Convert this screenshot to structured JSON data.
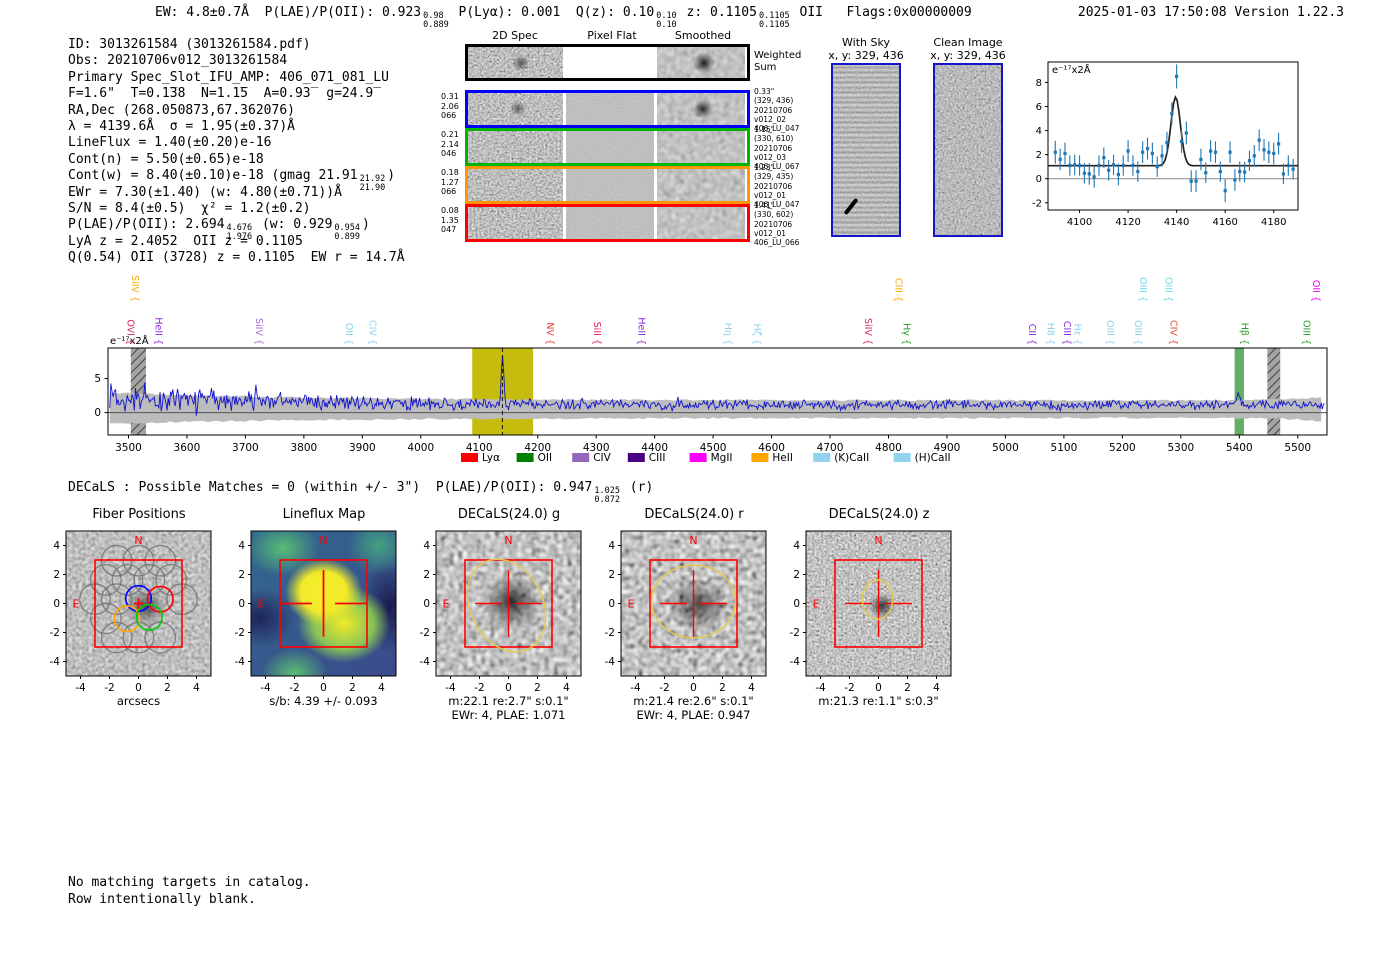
{
  "header": {
    "segments": [
      {
        "text": "EW: 4.8±0.7Å  P(LAE)/P(OII): 0.923"
      },
      {
        "sup": "0.98",
        "sub": "0.889"
      },
      {
        "text": " P(Lyα): 0.001  Q(z): 0.10"
      },
      {
        "sup": "0.10",
        "sub": "0.10"
      },
      {
        "text": " z: 0.1105"
      },
      {
        "sup": "0.1105",
        "sub": "0.1105"
      },
      {
        "text": " OII   Flags:0x00000009"
      }
    ],
    "timestamp": "2025-01-03 17:50:08  Version 1.22.3"
  },
  "info_block": {
    "lines": [
      [
        {
          "text": "ID: 3013261584 (3013261584.pdf)"
        }
      ],
      [
        {
          "text": "Obs: 20210706v012_3013261584"
        }
      ],
      [
        {
          "text": "Primary Spec_Slot_IFU_AMP: 406_071_081_LU"
        }
      ],
      [
        {
          "text": "F=1.6\"  T=0.1̅38  N=1.1̅5  A=0.93̅  g=24.9̅"
        }
      ],
      [
        {
          "text": "RA,Dec (268.050873,67.362076)"
        }
      ],
      [
        {
          "text": "λ = 4139.6Å  σ = 1.95(±0.37)Å"
        }
      ],
      [
        {
          "text": "LineFlux = 1.40(±0.20)e-16"
        }
      ],
      [
        {
          "text": "Cont(n) = 5.50(±0.65)e-18"
        }
      ],
      [
        {
          "text": "Cont(w) = 8.40(±0.10)e-18 (gmag 21.91"
        },
        {
          "sup": "21.92",
          "sub": "21.90"
        },
        {
          "text": ")"
        }
      ],
      [
        {
          "text": "EWr = 7.30(±1.40) (w: 4.80(±0.71))Å"
        }
      ],
      [
        {
          "text": "S/N = 8.4(±0.5)  χ² = 1.2(±0.2)"
        }
      ],
      [
        {
          "text": "P(LAE)/P(OII): 2.694"
        },
        {
          "sup": "4.676",
          "sub": "1.976"
        },
        {
          "text": " (w: 0.929"
        },
        {
          "sup": "0.954",
          "sub": "0.899"
        },
        {
          "text": ")"
        }
      ],
      [
        {
          "text": "LyA z = 2.4052  OII z = 0.1105"
        }
      ],
      [
        {
          "text": "Q(0.54) OII (3728) z = 0.1105  EW r = 14.7Å"
        }
      ]
    ]
  },
  "spec2d": {
    "col_titles": [
      "2D Spec",
      "Pixel Flat",
      "Smoothed"
    ],
    "weighted_label": [
      "Weighted",
      "Sum"
    ],
    "rows": [
      {
        "color": "#0000ff",
        "left": [
          "0.31",
          "2.06",
          "066"
        ],
        "right": [
          "0.33\"",
          "(329, 436)",
          "20210706",
          "v012_02",
          "406_LU_047"
        ]
      },
      {
        "color": "#00b400",
        "left": [
          "0.21",
          "2.14",
          "046"
        ],
        "right": [
          "1.15\"",
          "(330, 610)",
          "20210706",
          "v012_03",
          "406_LU_067"
        ]
      },
      {
        "color": "#ff9500",
        "left": [
          "0.18",
          "1.27",
          "066"
        ],
        "right": [
          "1.23\"",
          "(329, 435)",
          "20210706",
          "v012_01",
          "406_LU_047"
        ]
      },
      {
        "color": "#ff0000",
        "left": [
          "0.08",
          "1.35",
          "047"
        ],
        "right": [
          "1.41\"",
          "(330, 602)",
          "20210706",
          "v012_01",
          "406_LU_066"
        ]
      }
    ]
  },
  "sky_panels": {
    "with_sky": {
      "title": "With Sky",
      "subtitle": "x, y: 329, 436"
    },
    "clean": {
      "title": "Clean Image",
      "subtitle": "x, y: 329, 436"
    }
  },
  "decals_line": {
    "segments": [
      {
        "text": "DECaLS : Possible Matches = 0 (within +/- 3\")  P(LAE)/P(OII): 0.947"
      },
      {
        "sup": "1.025",
        "sub": "0.872"
      },
      {
        "text": " (r)"
      }
    ]
  },
  "cutouts": {
    "ticks": [
      -4,
      -2,
      0,
      2,
      4
    ],
    "compass": {
      "north": "N",
      "east": "E"
    },
    "panels": [
      {
        "title": "Fiber Positions",
        "xlabel": "arcsecs",
        "xlabel2": ""
      },
      {
        "title": "Lineflux Map",
        "xlabel": "s/b: 4.39 +/- 0.093",
        "xlabel2": ""
      },
      {
        "title": "DECaLS(24.0) g",
        "xlabel": "m:22.1  re:2.7\"  s:0.1\"",
        "xlabel2": "EWr: 4, PLAE: 1.071"
      },
      {
        "title": "DECaLS(24.0) r",
        "xlabel": "m:21.4  re:2.6\"  s:0.1\"",
        "xlabel2": "EWr: 4, PLAE: 0.947"
      },
      {
        "title": "DECaLS(24.0) z",
        "xlabel": "m:21.3  re:1.1\"  s:0.3\"",
        "xlabel2": ""
      }
    ]
  },
  "footer": {
    "line1": "No matching targets in catalog.",
    "line2": "Row intentionally blank."
  },
  "chart_data": [
    {
      "id": "line-fit-zoom",
      "type": "scatter",
      "corner_label": "e⁻¹⁷x2Å",
      "xlim": [
        4087,
        4190
      ],
      "ylim": [
        -2.6,
        9.7
      ],
      "xticks": [
        4100,
        4120,
        4140,
        4160,
        4180
      ],
      "yticks": [
        -2,
        0,
        2,
        4,
        6,
        8
      ],
      "point_color": "#1f77b4",
      "fit_color": "#222222",
      "fit": {
        "center": 4139.6,
        "sigma": 1.95,
        "amplitude": 5.7,
        "baseline": 1.08
      },
      "points": [
        [
          4090,
          2.2,
          0.95
        ],
        [
          4092,
          1.6,
          0.9
        ],
        [
          4094,
          2.1,
          0.9
        ],
        [
          4096,
          1.1,
          0.85
        ],
        [
          4098,
          1.15,
          0.85
        ],
        [
          4100,
          1.1,
          0.85
        ],
        [
          4102,
          0.45,
          0.85
        ],
        [
          4104,
          0.4,
          0.9
        ],
        [
          4106,
          0.15,
          0.9
        ],
        [
          4108,
          1.1,
          0.85
        ],
        [
          4110,
          1.75,
          0.85
        ],
        [
          4112,
          0.7,
          0.85
        ],
        [
          4114,
          1.15,
          0.85
        ],
        [
          4116,
          0.35,
          0.9
        ],
        [
          4118,
          1.1,
          0.85
        ],
        [
          4120,
          2.3,
          0.9
        ],
        [
          4122,
          1.1,
          0.85
        ],
        [
          4124,
          0.6,
          0.85
        ],
        [
          4126,
          2.2,
          0.9
        ],
        [
          4128,
          2.5,
          0.9
        ],
        [
          4130,
          2.1,
          0.9
        ],
        [
          4132,
          1.0,
          0.85
        ],
        [
          4134,
          1.9,
          0.9
        ],
        [
          4136,
          3.0,
          0.9
        ],
        [
          4138,
          5.4,
          0.95
        ],
        [
          4140,
          8.5,
          1.0
        ],
        [
          4142,
          3.1,
          0.95
        ],
        [
          4144,
          3.8,
          0.95
        ],
        [
          4146,
          -0.2,
          0.9
        ],
        [
          4148,
          -0.2,
          0.9
        ],
        [
          4150,
          1.6,
          0.9
        ],
        [
          4152,
          0.5,
          0.85
        ],
        [
          4154,
          2.3,
          0.9
        ],
        [
          4156,
          2.2,
          0.9
        ],
        [
          4158,
          0.6,
          0.85
        ],
        [
          4160,
          -1.0,
          0.95
        ],
        [
          4162,
          2.2,
          0.9
        ],
        [
          4164,
          -0.1,
          0.9
        ],
        [
          4166,
          0.6,
          0.85
        ],
        [
          4168,
          0.55,
          0.85
        ],
        [
          4170,
          1.5,
          0.85
        ],
        [
          4172,
          1.9,
          0.9
        ],
        [
          4174,
          3.2,
          0.9
        ],
        [
          4176,
          2.4,
          0.9
        ],
        [
          4178,
          2.2,
          0.9
        ],
        [
          4180,
          2.1,
          0.9
        ],
        [
          4182,
          2.9,
          0.9
        ],
        [
          4184,
          0.4,
          0.85
        ],
        [
          4186,
          1.1,
          0.85
        ],
        [
          4188,
          0.8,
          0.85
        ]
      ]
    },
    {
      "id": "full-spectrum",
      "type": "line",
      "corner_label": "e⁻¹⁷x2Å",
      "xlim": [
        3465,
        5550
      ],
      "ylim": [
        -3.3,
        9.5
      ],
      "xticks": [
        3500,
        3600,
        3700,
        3800,
        3900,
        4000,
        4100,
        4200,
        4300,
        4400,
        4500,
        4600,
        4700,
        4800,
        4900,
        5000,
        5100,
        5200,
        5300,
        5400,
        5500
      ],
      "yticks": [
        0,
        5
      ],
      "line_color": "#1212cc",
      "peak": {
        "x": 4139.6,
        "height": 6.9,
        "sigma": 2.2
      },
      "secondary_peak": {
        "x": 5398,
        "height": 1.7,
        "sigma": 3
      },
      "yellow_band": [
        4088,
        4192
      ],
      "green_band": [
        5392,
        5408
      ],
      "hatch_bands": [
        [
          3504,
          3530
        ],
        [
          5448,
          5470
        ]
      ],
      "noise": {
        "seed": 12,
        "step": 2,
        "baseline": 1.15,
        "blue_boost": 1.35,
        "blue_tau": 280,
        "amp": 0.55,
        "blue_amp": 1.5,
        "blue_amp_tau": 320
      },
      "error_band": {
        "upper_base": 1.8,
        "lower_base": -0.8,
        "blue_extra": 1.15,
        "tau": 330,
        "seed": 5
      },
      "legend": [
        {
          "label": "Lyα",
          "color": "#ff0000"
        },
        {
          "label": "OII",
          "color": "#008000"
        },
        {
          "label": "CIV",
          "color": "#9467bd"
        },
        {
          "label": "CIII",
          "color": "#4b0082"
        },
        {
          "label": "MgII",
          "color": "#ff00ff"
        },
        {
          "label": "HeII",
          "color": "#ffa500"
        },
        {
          "label": "(K)CaII",
          "color": "#92d2ef"
        },
        {
          "label": "(H)CaII",
          "color": "#92d2ef"
        }
      ],
      "line_labels": [
        {
          "wave": 3500,
          "label": "SiIV {",
          "color": "#ffa500",
          "row": 0
        },
        {
          "wave": 3492,
          "label": "OVI {",
          "color": "#d62758",
          "row": 1
        },
        {
          "wave": 3540,
          "label": "HeII {",
          "color": "#8a2be2",
          "row": 1
        },
        {
          "wave": 3712,
          "label": "SiIV {",
          "color": "#a86bd4",
          "row": 1
        },
        {
          "wave": 3866,
          "label": "OII {",
          "color": "#8fd0ee",
          "row": 1
        },
        {
          "wave": 3906,
          "label": "CIV {",
          "color": "#8fd0ee",
          "row": 1
        },
        {
          "wave": 4210,
          "label": "NV {",
          "color": "#e34234",
          "row": 1
        },
        {
          "wave": 4290,
          "label": "SiII {",
          "color": "#d62758",
          "row": 1
        },
        {
          "wave": 4366,
          "label": "HeII {",
          "color": "#8a2be2",
          "row": 1
        },
        {
          "wave": 4514,
          "label": "Hη {",
          "color": "#8fd0ee",
          "row": 1
        },
        {
          "wave": 4564,
          "label": "Hζ {",
          "color": "#8fd0ee",
          "row": 1
        },
        {
          "wave": 4754,
          "label": "SiIV {",
          "color": "#d62758",
          "row": 1
        },
        {
          "wave": 4806,
          "label": "CIII {",
          "color": "#ffa500",
          "row": 0
        },
        {
          "wave": 4820,
          "label": "Hγ {",
          "color": "#2ca02c",
          "row": 1
        },
        {
          "wave": 5034,
          "label": "CII {",
          "color": "#8a2be2",
          "row": 1
        },
        {
          "wave": 5066,
          "label": "H8 {",
          "color": "#8fd0ee",
          "row": 1
        },
        {
          "wave": 5094,
          "label": "CIII {",
          "color": "#8a2be2",
          "row": 1
        },
        {
          "wave": 5112,
          "label": "Hε {",
          "color": "#8fd0ee",
          "row": 1
        },
        {
          "wave": 5168,
          "label": "OIII {",
          "color": "#8fd0ee",
          "row": 1
        },
        {
          "wave": 5216,
          "label": "OIII {",
          "color": "#8fd0ee",
          "row": 1
        },
        {
          "wave": 5224,
          "label": "OIII {",
          "color": "#6fd8e8",
          "row": 0
        },
        {
          "wave": 5268,
          "label": "OIII {",
          "color": "#6fd8e8",
          "row": 0
        },
        {
          "wave": 5276,
          "label": "CIV {",
          "color": "#e34234",
          "row": 1
        },
        {
          "wave": 5398,
          "label": "Hβ {",
          "color": "#2ca02c",
          "row": 1
        },
        {
          "wave": 5504,
          "label": "OIII {",
          "color": "#2ca02c",
          "row": 1
        },
        {
          "wave": 5520,
          "label": "OII {",
          "color": "#ff00ff",
          "row": 0
        }
      ]
    }
  ]
}
